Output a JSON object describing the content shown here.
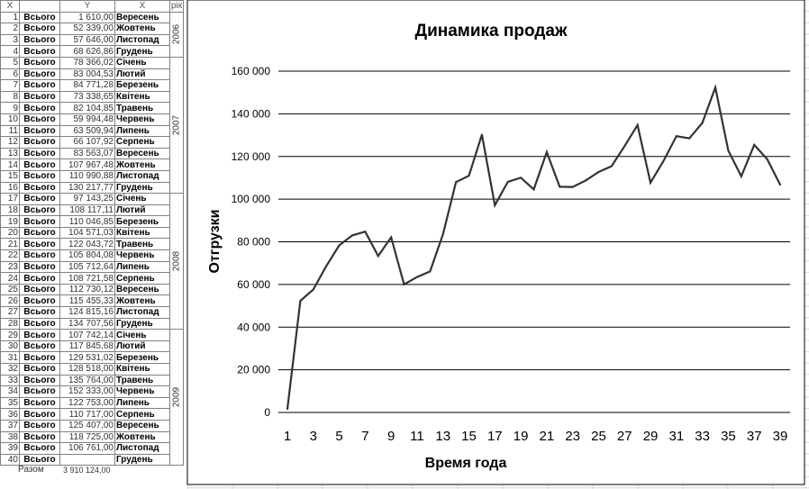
{
  "table": {
    "headers": [
      "X",
      "",
      "Y",
      "X",
      "рік"
    ],
    "rows": [
      [
        "1",
        "Всього",
        "1 610,00",
        "Вересень"
      ],
      [
        "2",
        "Всього",
        "52 339,00",
        "Жовтень"
      ],
      [
        "3",
        "Всього",
        "57 646,00",
        "Листопад"
      ],
      [
        "4",
        "Всього",
        "68 626,86",
        "Грудень"
      ],
      [
        "5",
        "Всього",
        "78 366,02",
        "Січень"
      ],
      [
        "6",
        "Всього",
        "83 004,53",
        "Лютий"
      ],
      [
        "7",
        "Всього",
        "84 771,28",
        "Березень"
      ],
      [
        "8",
        "Всього",
        "73 338,65",
        "Квітень"
      ],
      [
        "9",
        "Всього",
        "82 104,85",
        "Травень"
      ],
      [
        "10",
        "Всього",
        "59 994,48",
        "Червень"
      ],
      [
        "11",
        "Всього",
        "63 509,94",
        "Липень"
      ],
      [
        "12",
        "Всього",
        "66 107,92",
        "Серпень"
      ],
      [
        "13",
        "Всього",
        "83 563,07",
        "Вересень"
      ],
      [
        "14",
        "Всього",
        "107 967,48",
        "Жовтень"
      ],
      [
        "15",
        "Всього",
        "110 990,88",
        "Листопад"
      ],
      [
        "16",
        "Всього",
        "130 217,77",
        "Грудень"
      ],
      [
        "17",
        "Всього",
        "97 143,25",
        "Січень"
      ],
      [
        "18",
        "Всього",
        "108 117,11",
        "Лютий"
      ],
      [
        "19",
        "Всього",
        "110 046,85",
        "Березень"
      ],
      [
        "20",
        "Всього",
        "104 571,03",
        "Квітень"
      ],
      [
        "21",
        "Всього",
        "122 043,72",
        "Травень"
      ],
      [
        "22",
        "Всього",
        "105 804,08",
        "Червень"
      ],
      [
        "23",
        "Всього",
        "105 712,64",
        "Липень"
      ],
      [
        "24",
        "Всього",
        "108 721,58",
        "Серпень"
      ],
      [
        "25",
        "Всього",
        "112 730,12",
        "Вересень"
      ],
      [
        "26",
        "Всього",
        "115 455,33",
        "Жовтень"
      ],
      [
        "27",
        "Всього",
        "124 815,16",
        "Листопад"
      ],
      [
        "28",
        "Всього",
        "134 707,56",
        "Грудень"
      ],
      [
        "29",
        "Всього",
        "107 742,14",
        "Січень"
      ],
      [
        "30",
        "Всього",
        "117 845,68",
        "Лютий"
      ],
      [
        "31",
        "Всього",
        "129 531,02",
        "Березень"
      ],
      [
        "32",
        "Всього",
        "128 518,00",
        "Квітень"
      ],
      [
        "33",
        "Всього",
        "135 764,00",
        "Травень"
      ],
      [
        "34",
        "Всього",
        "152 333,00",
        "Червень"
      ],
      [
        "35",
        "Всього",
        "122 753,00",
        "Липень"
      ],
      [
        "36",
        "Всього",
        "110 717,00",
        "Серпень"
      ],
      [
        "37",
        "Всього",
        "125 407,00",
        "Вересень"
      ],
      [
        "38",
        "Всього",
        "118 725,00",
        "Жовтень"
      ],
      [
        "39",
        "Всього",
        "106 761,00",
        "Листопад"
      ],
      [
        "40",
        "Всього",
        "",
        "Грудень"
      ]
    ],
    "years": [
      {
        "label": "2006",
        "rows": 4
      },
      {
        "label": "2007",
        "rows": 12
      },
      {
        "label": "2008",
        "rows": 12
      },
      {
        "label": "2009",
        "rows": 12
      }
    ],
    "total_label": "Разом",
    "total_value": "3 910 124,00"
  },
  "chart_data": {
    "type": "line",
    "title": "Динамика продаж",
    "xlabel": "Время года",
    "ylabel": "Отгрузки",
    "ylim": [
      0,
      160000
    ],
    "yticks": [
      "0",
      "20 000",
      "40 000",
      "60 000",
      "80 000",
      "100 000",
      "120 000",
      "140 000",
      "160 000"
    ],
    "xticks": [
      "1",
      "3",
      "5",
      "7",
      "9",
      "11",
      "13",
      "15",
      "17",
      "19",
      "21",
      "23",
      "25",
      "27",
      "29",
      "31",
      "33",
      "35",
      "37",
      "39"
    ],
    "grid": true,
    "x": [
      1,
      2,
      3,
      4,
      5,
      6,
      7,
      8,
      9,
      10,
      11,
      12,
      13,
      14,
      15,
      16,
      17,
      18,
      19,
      20,
      21,
      22,
      23,
      24,
      25,
      26,
      27,
      28,
      29,
      30,
      31,
      32,
      33,
      34,
      35,
      36,
      37,
      38,
      39
    ],
    "values": [
      1610,
      52339,
      57646,
      68626.86,
      78366.02,
      83004.53,
      84771.28,
      73338.65,
      82104.85,
      59994.48,
      63509.94,
      66107.92,
      83563.07,
      107967.48,
      110990.88,
      130217.77,
      97143.25,
      108117.11,
      110046.85,
      104571.03,
      122043.72,
      105804.08,
      105712.64,
      108721.58,
      112730.12,
      115455.33,
      124815.16,
      134707.56,
      107742.14,
      117845.68,
      129531.02,
      128518,
      135764,
      152333,
      122753,
      110717,
      125407,
      118725,
      106761
    ],
    "line_color": "#333333"
  }
}
